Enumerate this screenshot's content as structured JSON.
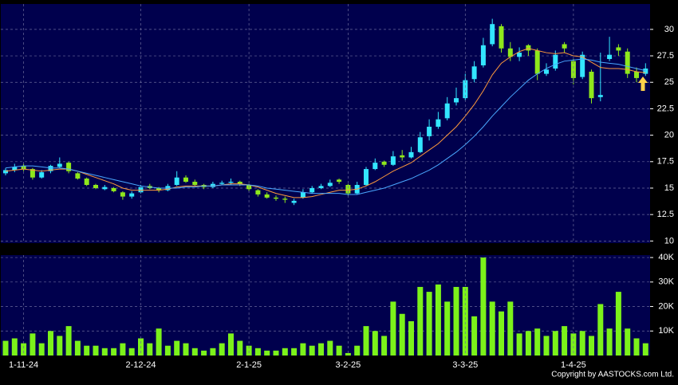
{
  "chart_data": [
    {
      "type": "candlestick",
      "ylim": [
        9.8,
        32.4
      ],
      "yticks": [
        10,
        12.5,
        15,
        17.5,
        20,
        22.5,
        25,
        27.5,
        30
      ],
      "grid": true,
      "up_color": "#33e6ff",
      "down_color": "#8fe81c",
      "ohlc": [
        [
          16.4,
          16.9,
          16.2,
          16.7
        ],
        [
          16.7,
          17.3,
          16.5,
          17.0
        ],
        [
          17.1,
          17.3,
          16.6,
          16.8
        ],
        [
          16.8,
          16.9,
          15.8,
          16.0
        ],
        [
          16.0,
          16.7,
          15.9,
          16.5
        ],
        [
          16.6,
          17.2,
          16.4,
          17.1
        ],
        [
          17.0,
          17.9,
          16.9,
          17.3
        ],
        [
          17.4,
          17.5,
          16.4,
          16.6
        ],
        [
          16.4,
          16.5,
          15.8,
          15.9
        ],
        [
          15.9,
          16.0,
          15.2,
          15.3
        ],
        [
          15.3,
          15.4,
          14.9,
          15.0
        ],
        [
          14.9,
          15.3,
          14.8,
          15.1
        ],
        [
          15.0,
          15.1,
          14.6,
          14.7
        ],
        [
          14.6,
          14.7,
          13.9,
          14.2
        ],
        [
          14.2,
          14.7,
          14.0,
          14.5
        ],
        [
          14.6,
          15.3,
          14.5,
          15.1
        ],
        [
          15.2,
          15.4,
          14.9,
          15.0
        ],
        [
          15.0,
          15.1,
          14.6,
          14.8
        ],
        [
          14.8,
          15.4,
          14.7,
          15.2
        ],
        [
          15.3,
          16.6,
          15.2,
          16.0
        ],
        [
          16.0,
          16.2,
          15.5,
          15.6
        ],
        [
          15.6,
          15.8,
          15.2,
          15.3
        ],
        [
          15.3,
          15.4,
          14.9,
          15.1
        ],
        [
          15.1,
          15.6,
          15.0,
          15.4
        ],
        [
          15.4,
          15.7,
          15.3,
          15.5
        ],
        [
          15.5,
          15.9,
          15.3,
          15.6
        ],
        [
          15.6,
          15.7,
          15.2,
          15.4
        ],
        [
          15.3,
          15.4,
          14.7,
          14.9
        ],
        [
          14.8,
          14.9,
          14.2,
          14.4
        ],
        [
          14.4,
          14.6,
          14.0,
          14.1
        ],
        [
          14.1,
          14.3,
          13.8,
          14.0
        ],
        [
          14.0,
          14.2,
          13.6,
          13.9
        ],
        [
          13.6,
          14.0,
          13.4,
          13.8
        ],
        [
          14.1,
          14.9,
          14.0,
          14.6
        ],
        [
          14.6,
          15.2,
          14.5,
          15.0
        ],
        [
          15.0,
          15.4,
          14.9,
          15.2
        ],
        [
          15.2,
          15.8,
          15.1,
          15.5
        ],
        [
          15.8,
          15.9,
          15.4,
          15.6
        ],
        [
          15.3,
          15.4,
          14.3,
          14.5
        ],
        [
          14.5,
          15.6,
          14.4,
          15.3
        ],
        [
          15.3,
          17.0,
          15.2,
          16.8
        ],
        [
          16.8,
          17.8,
          16.7,
          17.4
        ],
        [
          17.5,
          17.6,
          17.0,
          17.2
        ],
        [
          17.2,
          18.5,
          17.1,
          18.0
        ],
        [
          18.1,
          18.6,
          17.6,
          17.9
        ],
        [
          17.9,
          18.9,
          17.8,
          18.4
        ],
        [
          18.4,
          20.3,
          18.3,
          19.8
        ],
        [
          19.9,
          21.5,
          19.5,
          20.8
        ],
        [
          20.8,
          22.2,
          20.6,
          21.5
        ],
        [
          21.6,
          23.6,
          21.4,
          23.0
        ],
        [
          23.1,
          24.5,
          22.8,
          23.5
        ],
        [
          23.5,
          25.8,
          23.3,
          25.2
        ],
        [
          25.3,
          27.0,
          25.0,
          26.5
        ],
        [
          26.6,
          29.2,
          26.4,
          28.5
        ],
        [
          28.6,
          31.0,
          28.4,
          30.5
        ],
        [
          30.3,
          30.5,
          27.8,
          28.2
        ],
        [
          28.2,
          28.8,
          27.0,
          27.4
        ],
        [
          27.4,
          28.3,
          27.0,
          27.8
        ],
        [
          28.5,
          28.6,
          27.5,
          28.0
        ],
        [
          28.0,
          28.2,
          25.2,
          25.8
        ],
        [
          25.8,
          26.8,
          25.6,
          26.2
        ],
        [
          26.3,
          28.0,
          26.1,
          27.6
        ],
        [
          28.6,
          28.8,
          27.8,
          28.2
        ],
        [
          27.0,
          27.2,
          24.8,
          25.4
        ],
        [
          25.5,
          27.9,
          25.3,
          27.6
        ],
        [
          26.0,
          26.2,
          23.0,
          23.5
        ],
        [
          23.6,
          27.8,
          23.2,
          23.8
        ],
        [
          27.2,
          29.3,
          27.0,
          27.6
        ],
        [
          28.3,
          28.6,
          27.5,
          28.0
        ],
        [
          27.9,
          28.2,
          25.4,
          25.8
        ],
        [
          26.0,
          26.4,
          25.0,
          25.4
        ],
        [
          25.8,
          26.8,
          25.6,
          26.3
        ]
      ],
      "series": [
        {
          "color": "#ff9a3c",
          "values": [
            16.6,
            16.7,
            16.8,
            16.7,
            16.6,
            16.7,
            16.8,
            16.8,
            16.6,
            16.3,
            16.0,
            15.7,
            15.4,
            15.0,
            14.8,
            14.8,
            14.8,
            14.8,
            14.9,
            15.1,
            15.2,
            15.2,
            15.2,
            15.2,
            15.3,
            15.4,
            15.4,
            15.3,
            15.1,
            14.8,
            14.5,
            14.3,
            14.1,
            14.1,
            14.2,
            14.4,
            14.6,
            14.8,
            14.8,
            14.9,
            15.2,
            15.6,
            16.1,
            16.6,
            17.0,
            17.4,
            18.0,
            18.6,
            19.2,
            20.0,
            20.8,
            21.8,
            22.9,
            24.2,
            25.7,
            26.8,
            27.4,
            27.9,
            28.2,
            28.0,
            27.8,
            27.7,
            27.8,
            27.5,
            27.4,
            26.9,
            26.4,
            26.3,
            26.3,
            26.2,
            26.0,
            25.9
          ]
        },
        {
          "color": "#4aa8ff",
          "values": [
            16.9,
            17.0,
            17.1,
            17.1,
            17.0,
            16.9,
            16.9,
            16.8,
            16.6,
            16.4,
            16.2,
            16.0,
            15.8,
            15.6,
            15.4,
            15.2,
            15.1,
            15.0,
            15.0,
            15.0,
            15.1,
            15.1,
            15.2,
            15.2,
            15.3,
            15.3,
            15.3,
            15.3,
            15.2,
            15.0,
            14.9,
            14.8,
            14.7,
            14.6,
            14.5,
            14.5,
            14.5,
            14.5,
            14.4,
            14.4,
            14.6,
            14.8,
            15.0,
            15.3,
            15.6,
            15.9,
            16.3,
            16.7,
            17.2,
            17.8,
            18.4,
            19.1,
            19.9,
            20.8,
            21.8,
            22.7,
            23.6,
            24.4,
            25.2,
            25.8,
            26.3,
            26.7,
            27.0,
            27.1,
            27.2,
            27.1,
            26.9,
            26.8,
            26.7,
            26.5,
            26.3,
            26.1
          ]
        }
      ]
    },
    {
      "type": "bar",
      "ylim": [
        0,
        41000
      ],
      "yticks": [
        {
          "value": 10000,
          "label": "10K"
        },
        {
          "value": 20000,
          "label": "20K"
        },
        {
          "value": 30000,
          "label": "30K"
        },
        {
          "value": 40000,
          "label": "40K"
        }
      ],
      "grid": true,
      "color": "#7cf21a",
      "categories": [
        null,
        null,
        "1-11-24",
        null,
        null,
        null,
        null,
        null,
        null,
        null,
        null,
        null,
        null,
        null,
        null,
        "2-12-24",
        null,
        null,
        null,
        null,
        null,
        null,
        null,
        null,
        null,
        null,
        null,
        "2-1-25",
        null,
        null,
        null,
        null,
        null,
        null,
        null,
        null,
        null,
        null,
        "3-2-25",
        null,
        null,
        null,
        null,
        null,
        null,
        null,
        null,
        null,
        null,
        null,
        null,
        "3-3-25",
        null,
        null,
        null,
        null,
        null,
        null,
        null,
        null,
        null,
        null,
        null,
        "1-4-25",
        null,
        null,
        null,
        null,
        null,
        null,
        null,
        null
      ],
      "values": [
        6000,
        7000,
        5000,
        9000,
        5000,
        10000,
        8000,
        12000,
        6000,
        4000,
        4000,
        3000,
        3000,
        5000,
        3000,
        7000,
        5000,
        11000,
        4000,
        6000,
        5000,
        3000,
        2000,
        3000,
        5000,
        9000,
        6000,
        4000,
        3000,
        2000,
        2000,
        3000,
        3000,
        5000,
        4000,
        5000,
        6000,
        4000,
        1000,
        4000,
        12000,
        10000,
        8000,
        22000,
        17000,
        14000,
        28000,
        26000,
        29000,
        22000,
        28000,
        28000,
        16000,
        40000,
        22000,
        18000,
        22000,
        9000,
        10000,
        11000,
        8000,
        10000,
        12000,
        9000,
        10000,
        8000,
        21000,
        11000,
        26000,
        11000,
        7000,
        5000
      ]
    }
  ],
  "copyright": "Copyright by AASTOCKS.com Ltd."
}
